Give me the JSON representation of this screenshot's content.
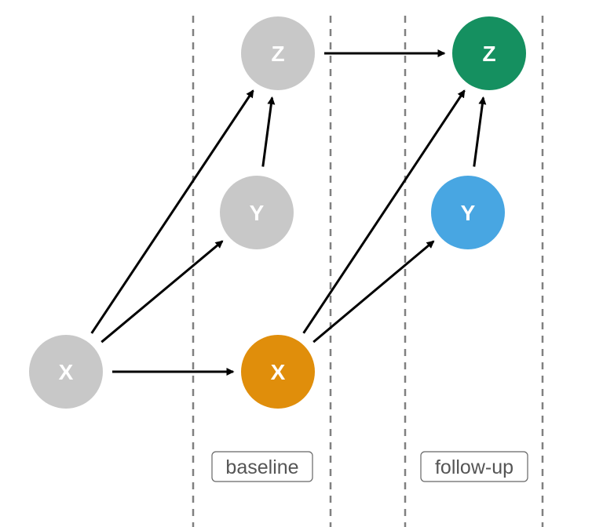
{
  "diagram": {
    "nodes": [
      {
        "id": "x_pre",
        "label": "X",
        "color": "#c8c8c8"
      },
      {
        "id": "x_base",
        "label": "X",
        "color": "#e08e0b"
      },
      {
        "id": "y_base",
        "label": "Y",
        "color": "#c8c8c8"
      },
      {
        "id": "z_base",
        "label": "Z",
        "color": "#c8c8c8"
      },
      {
        "id": "y_follow",
        "label": "Y",
        "color": "#48a6e2"
      },
      {
        "id": "z_follow",
        "label": "Z",
        "color": "#159060"
      }
    ],
    "edges": [
      {
        "from": "x_pre",
        "to": "x_base"
      },
      {
        "from": "x_pre",
        "to": "y_base"
      },
      {
        "from": "x_pre",
        "to": "z_base"
      },
      {
        "from": "y_base",
        "to": "z_base"
      },
      {
        "from": "z_base",
        "to": "z_follow"
      },
      {
        "from": "x_base",
        "to": "y_follow"
      },
      {
        "from": "x_base",
        "to": "z_follow"
      },
      {
        "from": "y_follow",
        "to": "z_follow"
      }
    ],
    "periods": [
      {
        "id": "baseline",
        "label": "baseline"
      },
      {
        "id": "follow-up",
        "label": "follow-up"
      }
    ]
  }
}
